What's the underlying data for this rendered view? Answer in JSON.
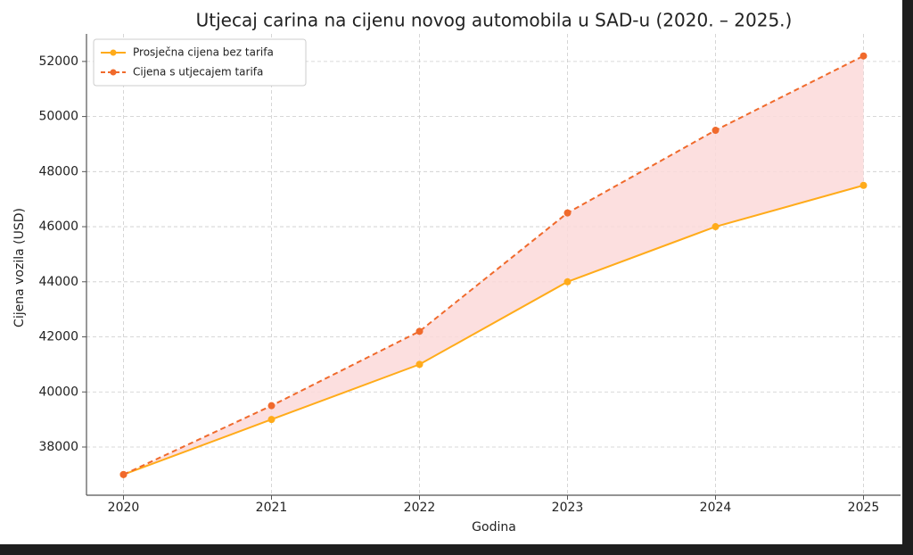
{
  "chart_data": {
    "type": "line",
    "title": "Utjecaj carina na cijenu novog automobila u SAD-u (2020. – 2025.)",
    "x_label": "Godina",
    "y_label": "Cijena vozila (USD)",
    "x": [
      2020,
      2021,
      2022,
      2023,
      2024,
      2025
    ],
    "series": [
      {
        "name": "Prosječna cijena bez tarifa",
        "color": "#ffab1a",
        "style": "solid",
        "values": [
          37000,
          39000,
          41000,
          44000,
          46000,
          47500
        ]
      },
      {
        "name": "Cijena s utjecajem tarifa",
        "color": "#f06a2c",
        "style": "dashed",
        "values": [
          37000,
          39500,
          42200,
          46500,
          49500,
          52200
        ]
      }
    ],
    "fill_between_color": "#fbd9d9",
    "xlim": [
      2019.75,
      2025.25
    ],
    "xticks": [
      2020,
      2021,
      2022,
      2023,
      2024,
      2025
    ],
    "ylim": [
      36250,
      53000
    ],
    "yticks": [
      38000,
      40000,
      42000,
      44000,
      46000,
      48000,
      50000,
      52000
    ],
    "grid": true,
    "legend": "upper left"
  }
}
